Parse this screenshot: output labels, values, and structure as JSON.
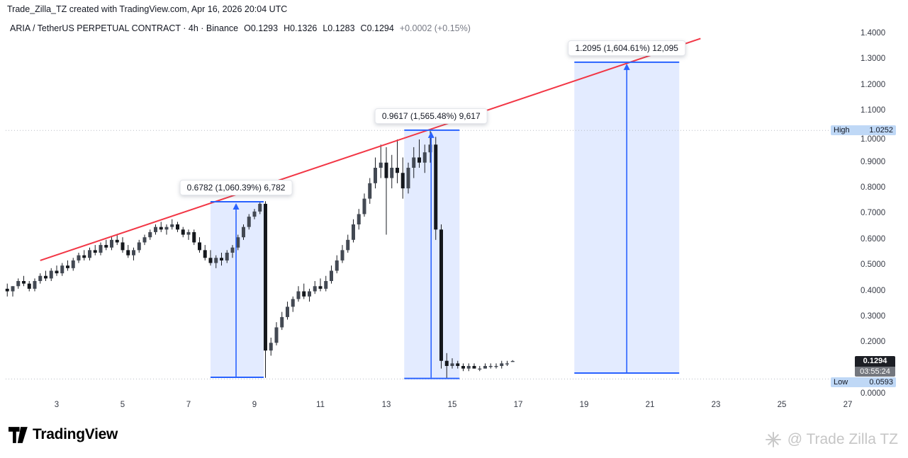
{
  "attribution": "Trade_Zilla_TZ created with TradingView.com, Apr 16, 2026 20:04 UTC",
  "header": {
    "title": "ARIA / TetherUS PERPETUAL CONTRACT · 4h · Binance",
    "ohlc": {
      "open_label": "O",
      "open": "0.1293",
      "high_label": "H",
      "high": "0.1326",
      "low_label": "L",
      "low": "0.1283",
      "close_label": "C",
      "close": "0.1294",
      "change": "+0.0002 (+0.15%)"
    }
  },
  "colors": {
    "accent_blue": "#2962FF",
    "box_fill": "rgba(41,98,255,0.13)",
    "trend_red": "#F23645",
    "badge_blue_bg": "#BFD8F6",
    "last_badge_bg": "#1C1E24",
    "countdown_bg": "#74777E",
    "up_candle": "#434953",
    "down_candle": "#15181D",
    "wick": "#1A1D23",
    "dotted_line": "#B8BCC4"
  },
  "price_axis": {
    "ticks": [
      {
        "label": "1.4000",
        "value": 1.4
      },
      {
        "label": "1.3000",
        "value": 1.3
      },
      {
        "label": "1.2000",
        "value": 1.2
      },
      {
        "label": "1.1000",
        "value": 1.1
      },
      {
        "label": "1.0000",
        "value": 1.0
      },
      {
        "label": "0.9000",
        "value": 0.9
      },
      {
        "label": "0.8000",
        "value": 0.8
      },
      {
        "label": "0.7000",
        "value": 0.7
      },
      {
        "label": "0.6000",
        "value": 0.6
      },
      {
        "label": "0.5000",
        "value": 0.5
      },
      {
        "label": "0.4000",
        "value": 0.4
      },
      {
        "label": "0.3000",
        "value": 0.3
      },
      {
        "label": "0.2000",
        "value": 0.2
      },
      {
        "label": "0.0000",
        "value": 0.0
      }
    ],
    "high_badge": {
      "label": "High",
      "value": "1.0252"
    },
    "low_badge": {
      "label": "Low",
      "value": "0.0593"
    },
    "last_badge": {
      "value": "0.1294",
      "countdown": "03:55:24"
    }
  },
  "time_axis": {
    "days": [
      3,
      5,
      7,
      9,
      11,
      13,
      15,
      17,
      19,
      21,
      23,
      25,
      27
    ]
  },
  "chart_data": {
    "type": "candlestick",
    "title": "ARIA / TetherUS PERPETUAL CONTRACT · 4h · Binance",
    "interval": "4h",
    "exchange": "Binance",
    "grid": "off",
    "legend_position": "none",
    "x_axis": {
      "unit": "day of month (April 2026)",
      "tick_days": [
        3,
        5,
        7,
        9,
        11,
        13,
        15,
        17,
        19,
        21,
        23,
        25,
        27
      ]
    },
    "y_axis": {
      "min": 0.0,
      "max": 1.45,
      "ticks": [
        1.4,
        1.3,
        1.2,
        1.1,
        1.0,
        0.9,
        0.8,
        0.7,
        0.6,
        0.5,
        0.4,
        0.3,
        0.2,
        0.0
      ]
    },
    "high": 1.0252,
    "low": 0.0593,
    "last": 0.1294,
    "candles_per_day": 6,
    "candles_ohlc": [
      [
        0.41,
        0.43,
        0.38,
        0.4
      ],
      [
        0.4,
        0.42,
        0.38,
        0.42
      ],
      [
        0.42,
        0.45,
        0.41,
        0.44
      ],
      [
        0.44,
        0.46,
        0.42,
        0.43
      ],
      [
        0.43,
        0.44,
        0.4,
        0.41
      ],
      [
        0.41,
        0.45,
        0.4,
        0.44
      ],
      [
        0.44,
        0.47,
        0.43,
        0.46
      ],
      [
        0.46,
        0.48,
        0.44,
        0.45
      ],
      [
        0.45,
        0.49,
        0.44,
        0.48
      ],
      [
        0.48,
        0.5,
        0.46,
        0.47
      ],
      [
        0.47,
        0.51,
        0.46,
        0.5
      ],
      [
        0.5,
        0.52,
        0.48,
        0.49
      ],
      [
        0.49,
        0.53,
        0.48,
        0.52
      ],
      [
        0.52,
        0.55,
        0.51,
        0.54
      ],
      [
        0.54,
        0.56,
        0.52,
        0.53
      ],
      [
        0.53,
        0.57,
        0.52,
        0.56
      ],
      [
        0.56,
        0.58,
        0.54,
        0.55
      ],
      [
        0.55,
        0.59,
        0.54,
        0.58
      ],
      [
        0.58,
        0.6,
        0.56,
        0.57
      ],
      [
        0.57,
        0.61,
        0.56,
        0.6
      ],
      [
        0.6,
        0.62,
        0.58,
        0.59
      ],
      [
        0.59,
        0.61,
        0.55,
        0.56
      ],
      [
        0.56,
        0.58,
        0.53,
        0.54
      ],
      [
        0.54,
        0.57,
        0.52,
        0.56
      ],
      [
        0.56,
        0.6,
        0.55,
        0.59
      ],
      [
        0.59,
        0.62,
        0.58,
        0.61
      ],
      [
        0.61,
        0.64,
        0.6,
        0.63
      ],
      [
        0.63,
        0.66,
        0.62,
        0.65
      ],
      [
        0.65,
        0.67,
        0.63,
        0.64
      ],
      [
        0.64,
        0.66,
        0.62,
        0.65
      ],
      [
        0.65,
        0.68,
        0.64,
        0.66
      ],
      [
        0.66,
        0.67,
        0.63,
        0.64
      ],
      [
        0.64,
        0.65,
        0.61,
        0.62
      ],
      [
        0.62,
        0.64,
        0.6,
        0.63
      ],
      [
        0.63,
        0.64,
        0.58,
        0.59
      ],
      [
        0.59,
        0.61,
        0.55,
        0.56
      ],
      [
        0.56,
        0.58,
        0.52,
        0.53
      ],
      [
        0.53,
        0.56,
        0.5,
        0.51
      ],
      [
        0.51,
        0.54,
        0.49,
        0.53
      ],
      [
        0.53,
        0.55,
        0.5,
        0.52
      ],
      [
        0.52,
        0.56,
        0.51,
        0.55
      ],
      [
        0.55,
        0.58,
        0.53,
        0.57
      ],
      [
        0.57,
        0.62,
        0.56,
        0.61
      ],
      [
        0.61,
        0.66,
        0.6,
        0.65
      ],
      [
        0.65,
        0.7,
        0.64,
        0.69
      ],
      [
        0.69,
        0.72,
        0.68,
        0.71
      ],
      [
        0.71,
        0.75,
        0.7,
        0.74
      ],
      [
        0.74,
        0.75,
        0.064,
        0.17
      ],
      [
        0.17,
        0.22,
        0.15,
        0.2
      ],
      [
        0.2,
        0.28,
        0.19,
        0.26
      ],
      [
        0.26,
        0.32,
        0.25,
        0.3
      ],
      [
        0.3,
        0.36,
        0.29,
        0.34
      ],
      [
        0.34,
        0.38,
        0.32,
        0.37
      ],
      [
        0.37,
        0.42,
        0.36,
        0.4
      ],
      [
        0.4,
        0.43,
        0.37,
        0.38
      ],
      [
        0.38,
        0.41,
        0.36,
        0.4
      ],
      [
        0.4,
        0.44,
        0.39,
        0.42
      ],
      [
        0.42,
        0.45,
        0.4,
        0.41
      ],
      [
        0.41,
        0.46,
        0.4,
        0.44
      ],
      [
        0.44,
        0.5,
        0.43,
        0.48
      ],
      [
        0.48,
        0.54,
        0.47,
        0.52
      ],
      [
        0.52,
        0.58,
        0.51,
        0.56
      ],
      [
        0.56,
        0.62,
        0.55,
        0.6
      ],
      [
        0.6,
        0.68,
        0.59,
        0.66
      ],
      [
        0.66,
        0.72,
        0.64,
        0.7
      ],
      [
        0.7,
        0.78,
        0.69,
        0.76
      ],
      [
        0.76,
        0.84,
        0.74,
        0.82
      ],
      [
        0.82,
        0.92,
        0.8,
        0.88
      ],
      [
        0.88,
        0.97,
        0.84,
        0.9
      ],
      [
        0.9,
        0.96,
        0.62,
        0.84
      ],
      [
        0.84,
        0.93,
        0.8,
        0.88
      ],
      [
        0.88,
        0.99,
        0.82,
        0.86
      ],
      [
        0.86,
        0.92,
        0.76,
        0.8
      ],
      [
        0.8,
        0.9,
        0.78,
        0.88
      ],
      [
        0.88,
        0.96,
        0.84,
        0.92
      ],
      [
        0.92,
        0.99,
        0.88,
        0.9
      ],
      [
        0.9,
        0.97,
        0.86,
        0.94
      ],
      [
        0.94,
        1.0252,
        0.9,
        0.97
      ],
      [
        0.97,
        1.0,
        0.6,
        0.64
      ],
      [
        0.64,
        0.66,
        0.1,
        0.13
      ],
      [
        0.13,
        0.16,
        0.0593,
        0.11
      ],
      [
        0.11,
        0.14,
        0.1,
        0.12
      ],
      [
        0.12,
        0.13,
        0.1,
        0.11
      ],
      [
        0.11,
        0.12,
        0.09,
        0.1
      ],
      [
        0.1,
        0.12,
        0.09,
        0.11
      ],
      [
        0.11,
        0.12,
        0.1,
        0.1
      ],
      [
        0.1,
        0.11,
        0.09,
        0.1
      ],
      [
        0.1,
        0.12,
        0.1,
        0.11
      ],
      [
        0.11,
        0.12,
        0.1,
        0.11
      ],
      [
        0.11,
        0.12,
        0.1,
        0.11
      ],
      [
        0.11,
        0.13,
        0.1,
        0.12
      ],
      [
        0.12,
        0.13,
        0.11,
        0.12
      ],
      [
        0.1293,
        0.1326,
        0.1283,
        0.1294
      ]
    ],
    "trendline": {
      "i1": 6,
      "p1": 0.52,
      "i2": 126.2,
      "p2": 1.382
    },
    "measurements": [
      {
        "label": "0.6782 (1,060.39%) 6,782",
        "i1": 37.0,
        "i2": 46.68,
        "p_low": 0.066,
        "p_high": 0.748,
        "arrow_i": 41.65
      },
      {
        "label": "0.9617 (1,565.48%) 9,617",
        "i1": 72.26,
        "i2": 82.32,
        "p_low": 0.0615,
        "p_high": 1.026,
        "arrow_i": 77.16
      },
      {
        "label": "1.2095 (1,604.61%) 12,095",
        "i1": 103.23,
        "i2": 122.32,
        "p_low": 0.0825,
        "p_high": 1.29,
        "arrow_i": 112.77
      }
    ]
  },
  "footer": {
    "logo_text": "TradingView"
  },
  "watermark": {
    "text": "@ Trade Zilla TZ"
  }
}
